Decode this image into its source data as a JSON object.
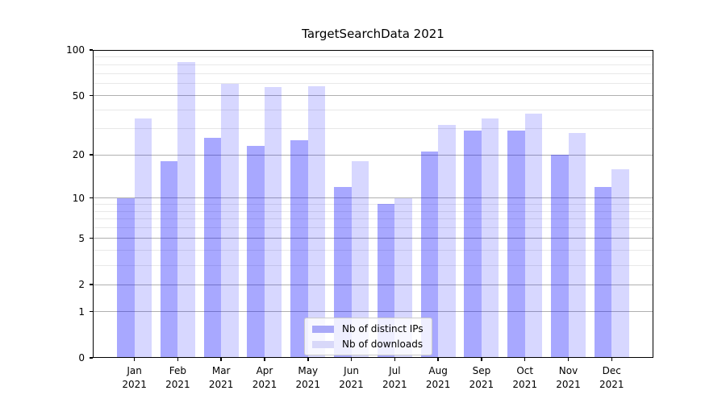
{
  "chart_data": {
    "type": "bar",
    "title": "TargetSearchData 2021",
    "categories": [
      "Jan",
      "Feb",
      "Mar",
      "Apr",
      "May",
      "Jun",
      "Jul",
      "Aug",
      "Sep",
      "Oct",
      "Nov",
      "Dec"
    ],
    "year_label": "2021",
    "series": [
      {
        "key": "ips",
        "name": "Nb of distinct IPs",
        "fill": "rgba(0,0,255,0.34)",
        "legend_color": "#a9a9f8",
        "values": [
          10,
          18,
          26,
          23,
          25,
          12,
          9,
          21,
          29,
          29,
          20,
          12
        ]
      },
      {
        "key": "downloads",
        "name": "Nb of downloads",
        "fill": "rgba(0,0,255,0.155)",
        "legend_color": "#d8d8f9",
        "values": [
          35,
          83,
          60,
          57,
          58,
          18,
          10,
          32,
          35,
          38,
          28,
          16
        ]
      }
    ],
    "yscale": "log1p",
    "ylim": [
      0,
      100
    ],
    "y_major_ticks": [
      0,
      1,
      2,
      5,
      10,
      20,
      50,
      100
    ],
    "y_minor_gridlines": [
      3,
      4,
      6,
      7,
      8,
      9,
      30,
      40,
      60,
      70,
      80,
      90
    ],
    "grid": true,
    "legend_position": "lower center",
    "colors": {
      "major_grid": "#b0b0b0",
      "minor_grid": "#e8e8e8",
      "spine": "#000000"
    }
  }
}
